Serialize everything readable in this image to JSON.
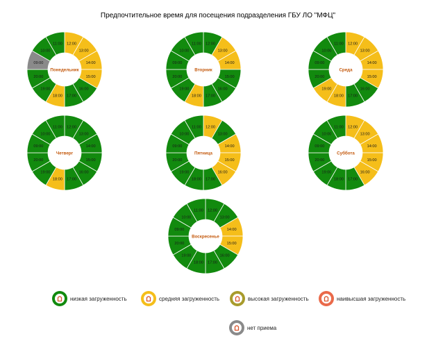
{
  "chart_data": {
    "type": "pie",
    "title": "Предпочтительное время для посещения подразделения ГБУ ЛО \"МФЦ\"",
    "segment_order": [
      "12:00",
      "13:00",
      "14:00",
      "15:00",
      "16:00",
      "17:00",
      "18:00",
      "19:00",
      "20:00",
      "09:00",
      "10:00",
      "11:00"
    ],
    "days": [
      {
        "name": "Понедельник",
        "segments": [
          {
            "time": "12:00",
            "level": "medium"
          },
          {
            "time": "13:00",
            "level": "medium"
          },
          {
            "time": "14:00",
            "level": "medium"
          },
          {
            "time": "15:00",
            "level": "medium"
          },
          {
            "time": "16:00",
            "level": "low"
          },
          {
            "time": "17:00",
            "level": "low"
          },
          {
            "time": "18:00",
            "level": "medium"
          },
          {
            "time": "19:00",
            "level": "low"
          },
          {
            "time": "20:00",
            "level": "low"
          },
          {
            "time": "09:00",
            "level": "none"
          },
          {
            "time": "10:00",
            "level": "low"
          },
          {
            "time": "11:00",
            "level": "low"
          }
        ]
      },
      {
        "name": "Вторник",
        "segments": [
          {
            "time": "12:00",
            "level": "low"
          },
          {
            "time": "13:00",
            "level": "medium"
          },
          {
            "time": "14:00",
            "level": "medium"
          },
          {
            "time": "15:00",
            "level": "low"
          },
          {
            "time": "16:00",
            "level": "low"
          },
          {
            "time": "17:00",
            "level": "low"
          },
          {
            "time": "18:00",
            "level": "medium"
          },
          {
            "time": "19:00",
            "level": "low"
          },
          {
            "time": "20:00",
            "level": "low"
          },
          {
            "time": "09:00",
            "level": "low"
          },
          {
            "time": "10:00",
            "level": "low"
          },
          {
            "time": "11:00",
            "level": "low"
          }
        ]
      },
      {
        "name": "Среда",
        "segments": [
          {
            "time": "12:00",
            "level": "medium"
          },
          {
            "time": "13:00",
            "level": "medium"
          },
          {
            "time": "14:00",
            "level": "medium"
          },
          {
            "time": "15:00",
            "level": "medium"
          },
          {
            "time": "16:00",
            "level": "low"
          },
          {
            "time": "17:00",
            "level": "low"
          },
          {
            "time": "18:00",
            "level": "medium"
          },
          {
            "time": "19:00",
            "level": "medium"
          },
          {
            "time": "20:00",
            "level": "low"
          },
          {
            "time": "09:00",
            "level": "low"
          },
          {
            "time": "10:00",
            "level": "low"
          },
          {
            "time": "11:00",
            "level": "low"
          }
        ]
      },
      {
        "name": "Четверг",
        "segments": [
          {
            "time": "12:00",
            "level": "low"
          },
          {
            "time": "13:00",
            "level": "low"
          },
          {
            "time": "14:00",
            "level": "low"
          },
          {
            "time": "15:00",
            "level": "low"
          },
          {
            "time": "16:00",
            "level": "low"
          },
          {
            "time": "17:00",
            "level": "low"
          },
          {
            "time": "18:00",
            "level": "medium"
          },
          {
            "time": "19:00",
            "level": "low"
          },
          {
            "time": "20:00",
            "level": "low"
          },
          {
            "time": "09:00",
            "level": "low"
          },
          {
            "time": "10:00",
            "level": "low"
          },
          {
            "time": "11:00",
            "level": "low"
          }
        ]
      },
      {
        "name": "Пятница",
        "segments": [
          {
            "time": "12:00",
            "level": "medium"
          },
          {
            "time": "13:00",
            "level": "low"
          },
          {
            "time": "14:00",
            "level": "medium"
          },
          {
            "time": "15:00",
            "level": "medium"
          },
          {
            "time": "16:00",
            "level": "medium"
          },
          {
            "time": "17:00",
            "level": "low"
          },
          {
            "time": "18:00",
            "level": "low"
          },
          {
            "time": "19:00",
            "level": "low"
          },
          {
            "time": "20:00",
            "level": "low"
          },
          {
            "time": "09:00",
            "level": "low"
          },
          {
            "time": "10:00",
            "level": "low"
          },
          {
            "time": "11:00",
            "level": "low"
          }
        ]
      },
      {
        "name": "Суббота",
        "segments": [
          {
            "time": "12:00",
            "level": "medium"
          },
          {
            "time": "13:00",
            "level": "medium"
          },
          {
            "time": "14:00",
            "level": "medium"
          },
          {
            "time": "15:00",
            "level": "medium"
          },
          {
            "time": "16:00",
            "level": "medium"
          },
          {
            "time": "17:00",
            "level": "low"
          },
          {
            "time": "18:00",
            "level": "low"
          },
          {
            "time": "19:00",
            "level": "low"
          },
          {
            "time": "20:00",
            "level": "low"
          },
          {
            "time": "09:00",
            "level": "low"
          },
          {
            "time": "10:00",
            "level": "low"
          },
          {
            "time": "11:00",
            "level": "low"
          }
        ]
      },
      {
        "name": "Воскресенье",
        "segments": [
          {
            "time": "12:00",
            "level": "low"
          },
          {
            "time": "13:00",
            "level": "low"
          },
          {
            "time": "14:00",
            "level": "medium"
          },
          {
            "time": "15:00",
            "level": "medium"
          },
          {
            "time": "16:00",
            "level": "low"
          },
          {
            "time": "17:00",
            "level": "low"
          },
          {
            "time": "18:00",
            "level": "low"
          },
          {
            "time": "19:00",
            "level": "low"
          },
          {
            "time": "20:00",
            "level": "low"
          },
          {
            "time": "09:00",
            "level": "low"
          },
          {
            "time": "10:00",
            "level": "low"
          },
          {
            "time": "11:00",
            "level": "low"
          }
        ]
      }
    ],
    "levels": [
      {
        "id": "low",
        "label": "низкая загруженность",
        "color": "#128a0e"
      },
      {
        "id": "medium",
        "label": "средняя загруженность",
        "color": "#f5be1a"
      },
      {
        "id": "high",
        "label": "высокая загруженность",
        "color": "#a89b2c"
      },
      {
        "id": "highest",
        "label": "наивысшая загруженность",
        "color": "#ea6a4a"
      },
      {
        "id": "none",
        "label": "нет приема",
        "color": "#8a8a8a"
      }
    ],
    "legend_position": "bottom"
  }
}
